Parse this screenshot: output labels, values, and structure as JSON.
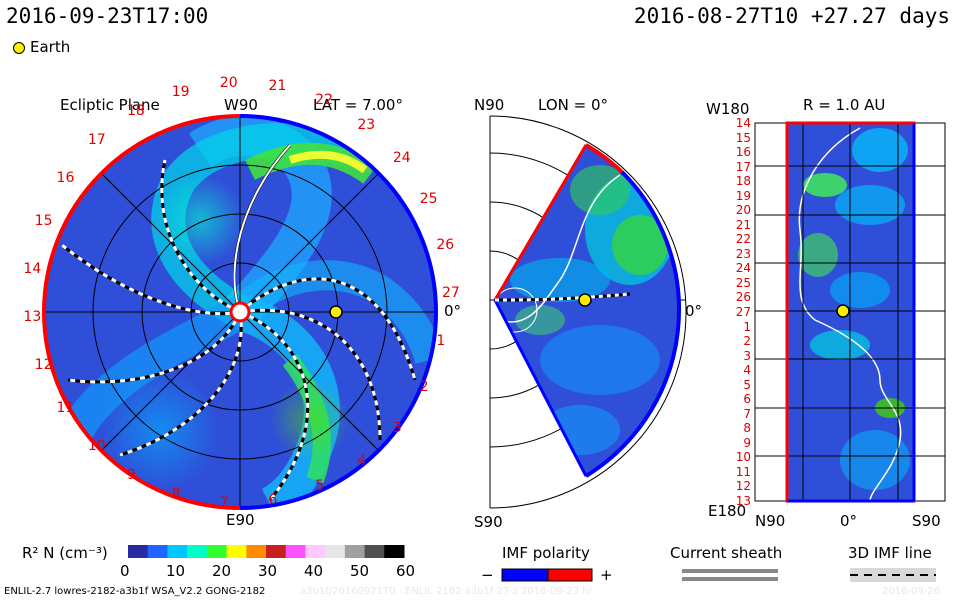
{
  "header": {
    "datetime": "2016-09-23T17:00",
    "reference": "2016-08-27T10 +27.27 days"
  },
  "legend_marker": {
    "label": "Earth",
    "color": "#ffee00"
  },
  "ecliptic": {
    "title": "Ecliptic Plane",
    "lat_label": "LAT = 7.00°",
    "top_label": "W90",
    "bottom_label": "E90",
    "right_label": "0°",
    "carrington": [
      "1",
      "2",
      "3",
      "4",
      "5",
      "6",
      "7",
      "8",
      "9",
      "10",
      "11",
      "12",
      "13",
      "14",
      "15",
      "16",
      "17",
      "18",
      "19",
      "20",
      "21",
      "22",
      "23",
      "24",
      "25",
      "26",
      "27"
    ]
  },
  "meridional": {
    "lon_label": "LON = 0°",
    "top_label": "N90",
    "bottom_label": "S90",
    "right_label": "0°"
  },
  "synoptic": {
    "r_label": "R = 1.0 AU",
    "top_label": "W180",
    "bottom_label": "E180",
    "x_labels": [
      "N90",
      "0°",
      "S90"
    ],
    "y_labels": [
      "14",
      "15",
      "16",
      "17",
      "18",
      "19",
      "20",
      "21",
      "22",
      "23",
      "24",
      "25",
      "26",
      "27",
      "1",
      "2",
      "3",
      "4",
      "5",
      "6",
      "7",
      "8",
      "9",
      "10",
      "11",
      "12",
      "13"
    ]
  },
  "colorbar": {
    "title": "R² N (cm⁻³)",
    "ticks": [
      "0",
      "10",
      "20",
      "30",
      "40",
      "50",
      "60"
    ],
    "colors": [
      "#2a2aa0",
      "#1e64ff",
      "#00c8ff",
      "#00ffc8",
      "#32ff32",
      "#ffff00",
      "#ff8c00",
      "#c81e1e",
      "#ff50ff",
      "#ffc8ff",
      "#e6e6e6",
      "#a0a0a0",
      "#505050",
      "#000000"
    ]
  },
  "imf_legend": {
    "title": "IMF polarity",
    "minus": "−",
    "plus": "+",
    "negative_color": "#0000ff",
    "positive_color": "#ff0000"
  },
  "sheath_legend": {
    "title": "Current sheath"
  },
  "imf_line_legend": {
    "title": "3D IMF line"
  },
  "footer": {
    "left": "ENLIL-2.7 lowres-2182-a3b1f WSA_V2.2 GONG-2182",
    "middle": "a3b1f/20160921T0...ENLIL 2182 a3b1f 27 z 2016-09-23 hr",
    "right": "2016-09-26"
  }
}
